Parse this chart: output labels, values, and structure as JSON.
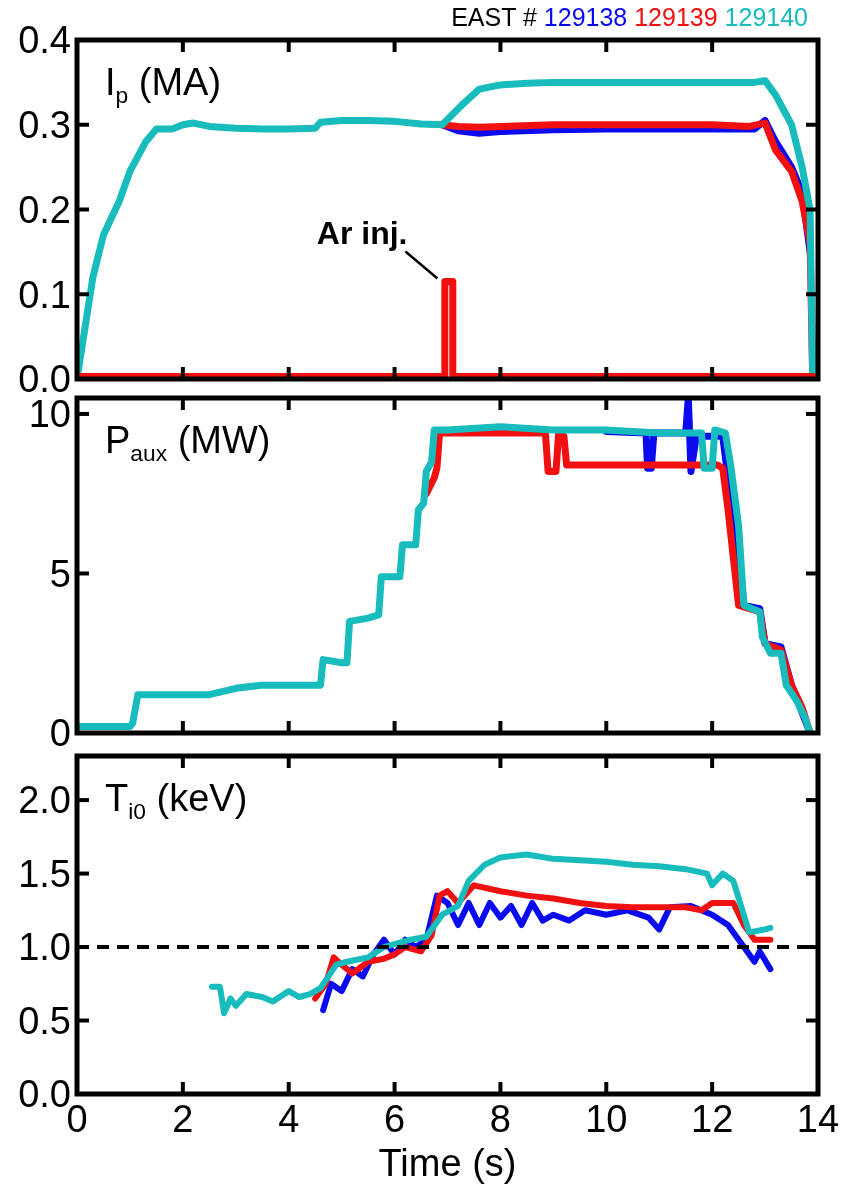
{
  "chart_data": [
    {
      "type": "line",
      "title": "EAST #",
      "ylabel": "I$_{p}$ (MA)",
      "legend": "top right",
      "tick_labels": "y",
      "xlim": [
        0,
        14
      ],
      "xticks": [
        0,
        2,
        4,
        6,
        8,
        10,
        12,
        14
      ],
      "ylim": [
        0,
        0.4
      ],
      "yticks": [
        {
          "value": 0,
          "label": "0.0"
        },
        {
          "value": 0.1,
          "label": "0.1"
        },
        {
          "value": 0.2,
          "label": "0.2"
        },
        {
          "value": 0.3,
          "label": "0.3"
        },
        {
          "value": 0.4,
          "label": "0.4"
        }
      ],
      "annotations": [
        {
          "text": "Ar inj.",
          "x": 7.0,
          "y": 0.115
        }
      ],
      "series": [
        {
          "name": "129138",
          "color": "#0a0aee",
          "x": [
            6.9,
            7.2,
            7.6,
            8,
            9,
            10,
            11,
            12,
            12.8,
            13,
            13.2,
            13.5,
            13.7,
            13.85
          ],
          "values": [
            0.3,
            0.293,
            0.29,
            0.292,
            0.294,
            0.295,
            0.295,
            0.295,
            0.295,
            0.305,
            0.28,
            0.25,
            0.22,
            0.15
          ]
        },
        {
          "name": "129139",
          "color": "#f01010",
          "x": [
            6.9,
            7.2,
            7.6,
            8,
            9,
            10,
            11,
            12,
            12.7,
            13,
            13.2,
            13.5,
            13.7,
            13.85,
            13.9
          ],
          "values": [
            0.3,
            0.298,
            0.297,
            0.298,
            0.3,
            0.3,
            0.3,
            0.3,
            0.298,
            0.302,
            0.27,
            0.245,
            0.21,
            0.16,
            0
          ]
        },
        {
          "name": "129140",
          "color": "#19bcbc",
          "x": [
            0,
            0.3,
            0.5,
            0.8,
            1.0,
            1.3,
            1.5,
            1.8,
            2.0,
            2.2,
            2.5,
            3,
            3.5,
            4.0,
            4.5,
            4.6,
            5,
            5.5,
            6,
            6.5,
            6.9,
            7.3,
            7.6,
            8,
            8.5,
            9,
            10,
            11,
            12,
            12.8,
            13.0,
            13.2,
            13.5,
            13.7,
            13.85,
            13.9
          ],
          "values": [
            0,
            0.12,
            0.17,
            0.21,
            0.245,
            0.28,
            0.295,
            0.295,
            0.3,
            0.302,
            0.298,
            0.296,
            0.295,
            0.295,
            0.296,
            0.303,
            0.305,
            0.305,
            0.304,
            0.301,
            0.3,
            0.325,
            0.342,
            0.347,
            0.349,
            0.35,
            0.35,
            0.35,
            0.35,
            0.35,
            0.352,
            0.335,
            0.3,
            0.25,
            0.2,
            0
          ]
        },
        {
          "color": "#f01010",
          "x": [
            0,
            6.95,
            6.95,
            7.1,
            7.1,
            13.9
          ],
          "values": [
            0.003,
            0.003,
            0.115,
            0.115,
            0.003,
            0.003
          ]
        }
      ]
    },
    {
      "type": "line",
      "ylabel": "P$_{aux}$ (MW)",
      "tick_labels": "y",
      "xlim": [
        0,
        14
      ],
      "xticks": [
        0,
        2,
        4,
        6,
        8,
        10,
        12,
        14
      ],
      "ylim": [
        0,
        10.5
      ],
      "yticks": [
        0,
        5,
        10
      ],
      "series": [
        {
          "color": "#0a0aee",
          "x": [
            10,
            10.75,
            10.78,
            10.85,
            10.9,
            11.5,
            11.55,
            11.6,
            11.7,
            12.2,
            12.3,
            12.45,
            12.6,
            12.9,
            13.0,
            13.3,
            13.5,
            13.85
          ],
          "values": [
            9.45,
            9.4,
            8.3,
            8.3,
            9.4,
            9.4,
            10.5,
            8.2,
            9.3,
            9.3,
            8.0,
            6.5,
            4.0,
            3.9,
            2.8,
            2.7,
            1.5,
            0
          ]
        },
        {
          "color": "#f01010",
          "x": [
            6.6,
            6.75,
            6.8,
            6.85,
            8,
            8.85,
            8.9,
            9.05,
            9.1,
            9.2,
            9.25,
            10,
            11,
            12.1,
            12.2,
            12.3,
            12.4,
            12.5,
            12.9,
            13.0,
            13.3,
            13.5,
            13.7,
            13.85
          ],
          "values": [
            7.5,
            8.0,
            8.3,
            9.4,
            9.4,
            9.4,
            8.2,
            8.2,
            9.4,
            9.3,
            8.4,
            8.4,
            8.4,
            8.4,
            8.3,
            7.0,
            5.5,
            4.0,
            3.8,
            2.8,
            2.6,
            1.5,
            0.8,
            0
          ]
        },
        {
          "color": "#19bcbc",
          "x": [
            0,
            1.0,
            1.05,
            1.15,
            1.5,
            2,
            2.5,
            3,
            3.5,
            4,
            4.6,
            4.65,
            5.0,
            5.1,
            5.15,
            5.5,
            5.7,
            5.75,
            6.1,
            6.15,
            6.4,
            6.45,
            6.55,
            6.6,
            6.7,
            6.75,
            7,
            8,
            9,
            10,
            11,
            11.8,
            11.85,
            12.0,
            12.05,
            12.25,
            12.35,
            12.5,
            12.6,
            12.9,
            12.95,
            13.1,
            13.3,
            13.4,
            13.6,
            13.75,
            13.85
          ],
          "values": [
            0.2,
            0.2,
            0.3,
            1.2,
            1.2,
            1.2,
            1.2,
            1.4,
            1.5,
            1.5,
            1.5,
            2.3,
            2.2,
            2.2,
            3.5,
            3.6,
            3.7,
            4.9,
            4.9,
            5.9,
            5.9,
            7.0,
            7.2,
            8.2,
            8.5,
            9.5,
            9.5,
            9.6,
            9.5,
            9.5,
            9.4,
            9.4,
            8.3,
            8.3,
            9.5,
            9.4,
            8.4,
            6.5,
            4.0,
            3.8,
            3.0,
            2.5,
            2.5,
            1.5,
            1.0,
            0.5,
            0
          ]
        }
      ]
    },
    {
      "type": "line",
      "ylabel": "T$_{i0}$ (keV)",
      "xlabel": "Time (s)",
      "xlim": [
        0,
        14
      ],
      "xticks": [
        0,
        2,
        4,
        6,
        8,
        10,
        12,
        14
      ],
      "ylim": [
        0,
        2.3
      ],
      "yticks": [
        {
          "value": 0,
          "label": "0.0"
        },
        {
          "value": 0.5,
          "label": "0.5"
        },
        {
          "value": 1,
          "label": "1.0"
        },
        {
          "value": 1.5,
          "label": "1.5"
        },
        {
          "value": 2,
          "label": "2.0"
        }
      ],
      "ref_lines": [
        {
          "axis": "y",
          "value": 1.0,
          "color": "#000000",
          "line_style": "dashed"
        }
      ],
      "series": [
        {
          "color": "#0a0aee",
          "x": [
            4.65,
            4.8,
            5.0,
            5.2,
            5.4,
            5.6,
            5.8,
            6.0,
            6.2,
            6.4,
            6.6,
            6.8,
            7.0,
            7.2,
            7.4,
            7.6,
            7.8,
            8.0,
            8.2,
            8.4,
            8.6,
            8.8,
            9.0,
            9.3,
            9.6,
            10,
            10.4,
            10.8,
            11,
            11.2,
            11.6,
            12.0,
            12.3,
            12.6,
            12.8,
            12.9,
            13.1
          ],
          "values": [
            0.57,
            0.75,
            0.7,
            0.85,
            0.8,
            0.95,
            1.05,
            0.95,
            1.05,
            1.0,
            1.05,
            1.35,
            1.3,
            1.15,
            1.3,
            1.15,
            1.3,
            1.2,
            1.28,
            1.15,
            1.3,
            1.18,
            1.22,
            1.18,
            1.25,
            1.22,
            1.25,
            1.2,
            1.12,
            1.27,
            1.28,
            1.22,
            1.15,
            1.0,
            0.9,
            0.97,
            0.85
          ]
        },
        {
          "color": "#f01010",
          "x": [
            4.5,
            4.7,
            4.85,
            5.0,
            5.2,
            5.5,
            5.8,
            6.0,
            6.2,
            6.5,
            6.7,
            6.85,
            7.0,
            7.2,
            7.5,
            8,
            8.5,
            9,
            9.5,
            10,
            10.5,
            11,
            11.5,
            11.8,
            12.0,
            12.4,
            12.6,
            12.8,
            13.1
          ],
          "values": [
            0.65,
            0.75,
            0.93,
            0.88,
            0.82,
            0.9,
            0.92,
            0.95,
            1.0,
            0.97,
            1.08,
            1.35,
            1.38,
            1.3,
            1.42,
            1.38,
            1.35,
            1.33,
            1.3,
            1.28,
            1.27,
            1.27,
            1.27,
            1.25,
            1.3,
            1.3,
            1.15,
            1.05,
            1.05
          ]
        },
        {
          "color": "#19bcbc",
          "x": [
            2.55,
            2.7,
            2.78,
            2.9,
            3.0,
            3.2,
            3.5,
            3.7,
            4.0,
            4.2,
            4.4,
            4.6,
            4.9,
            5.1,
            5.5,
            5.8,
            6.0,
            6.3,
            6.6,
            6.9,
            7.2,
            7.4,
            7.7,
            8.0,
            8.5,
            9,
            9.5,
            10,
            10.5,
            11,
            11.5,
            11.9,
            12.0,
            12.2,
            12.4,
            12.7,
            13.0,
            13.1
          ],
          "values": [
            0.73,
            0.73,
            0.55,
            0.65,
            0.6,
            0.68,
            0.66,
            0.63,
            0.7,
            0.66,
            0.68,
            0.72,
            0.88,
            0.9,
            0.93,
            1.0,
            1.02,
            1.05,
            1.07,
            1.22,
            1.28,
            1.45,
            1.56,
            1.61,
            1.63,
            1.6,
            1.59,
            1.58,
            1.56,
            1.55,
            1.53,
            1.5,
            1.42,
            1.5,
            1.45,
            1.1,
            1.12,
            1.13
          ]
        }
      ]
    }
  ]
}
